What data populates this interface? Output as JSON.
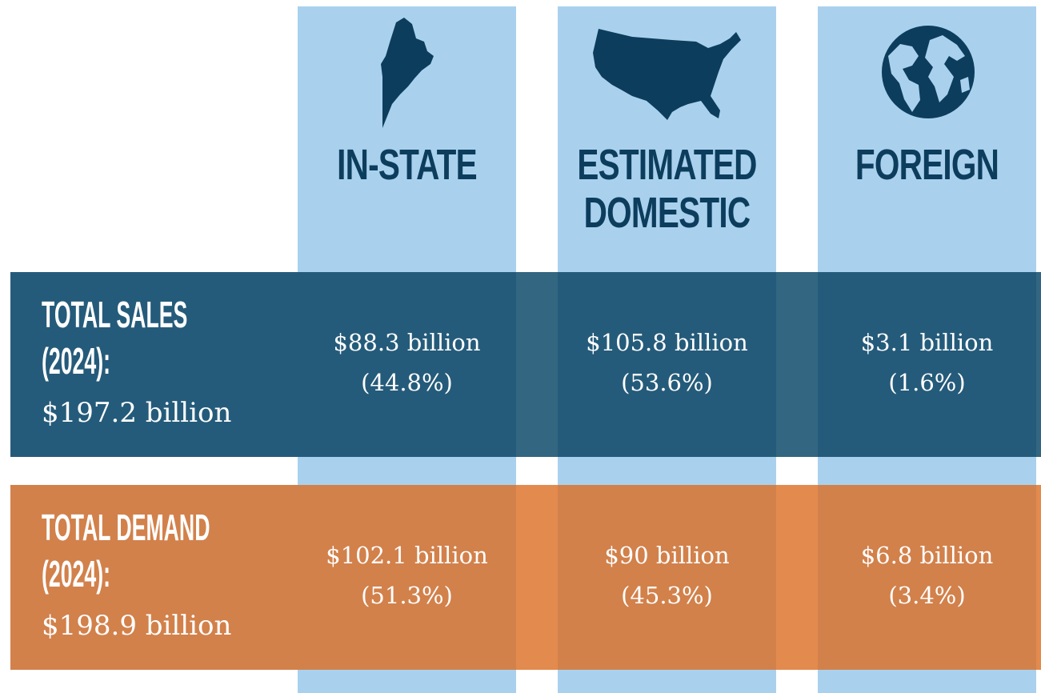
{
  "columns": [
    "IN-STATE",
    "ESTIMATED DOMESTIC",
    "FOREIGN"
  ],
  "rows": [
    {
      "label": "TOTAL SALES (2024):",
      "total": "$197.2 billion",
      "cells": [
        {
          "amount": "$88.3 billion",
          "share": "(44.8%)"
        },
        {
          "amount": "$105.8 billion",
          "share": "(53.6%)"
        },
        {
          "amount": "$3.1 billion",
          "share": "(1.6%)"
        }
      ]
    },
    {
      "label": "TOTAL DEMAND (2024):",
      "total": "$198.9 billion",
      "cells": [
        {
          "amount": "$102.1 billion",
          "share": "(51.3%)"
        },
        {
          "amount": "$90 billion",
          "share": "(45.3%)"
        },
        {
          "amount": "$6.8 billion",
          "share": "(3.4%)"
        }
      ]
    }
  ]
}
